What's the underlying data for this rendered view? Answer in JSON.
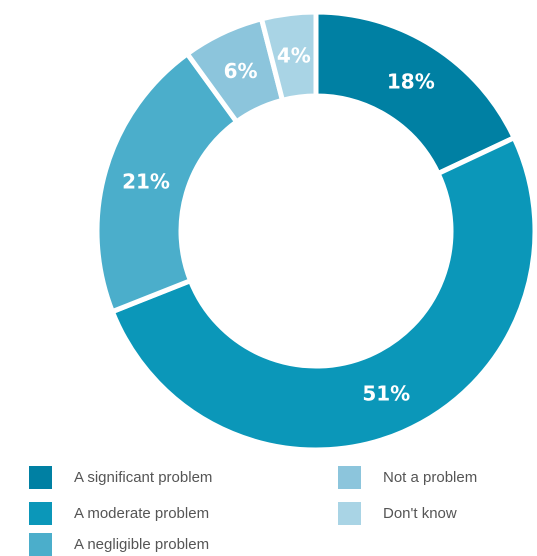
{
  "chart_data": {
    "type": "pie",
    "variant": "donut",
    "slices": [
      {
        "label": "A significant problem",
        "value": 18,
        "display": "18%",
        "color": "#0080a3"
      },
      {
        "label": "A moderate problem",
        "value": 51,
        "display": "51%",
        "color": "#0b97b9"
      },
      {
        "label": "A negligible problem",
        "value": 21,
        "display": "21%",
        "color": "#4baecb"
      },
      {
        "label": "Not a problem",
        "value": 6,
        "display": "6%",
        "color": "#8cc5dc"
      },
      {
        "label": "Don't know",
        "value": 4,
        "display": "4%",
        "color": "#a9d4e5"
      }
    ],
    "legend_placement": "bottom"
  }
}
